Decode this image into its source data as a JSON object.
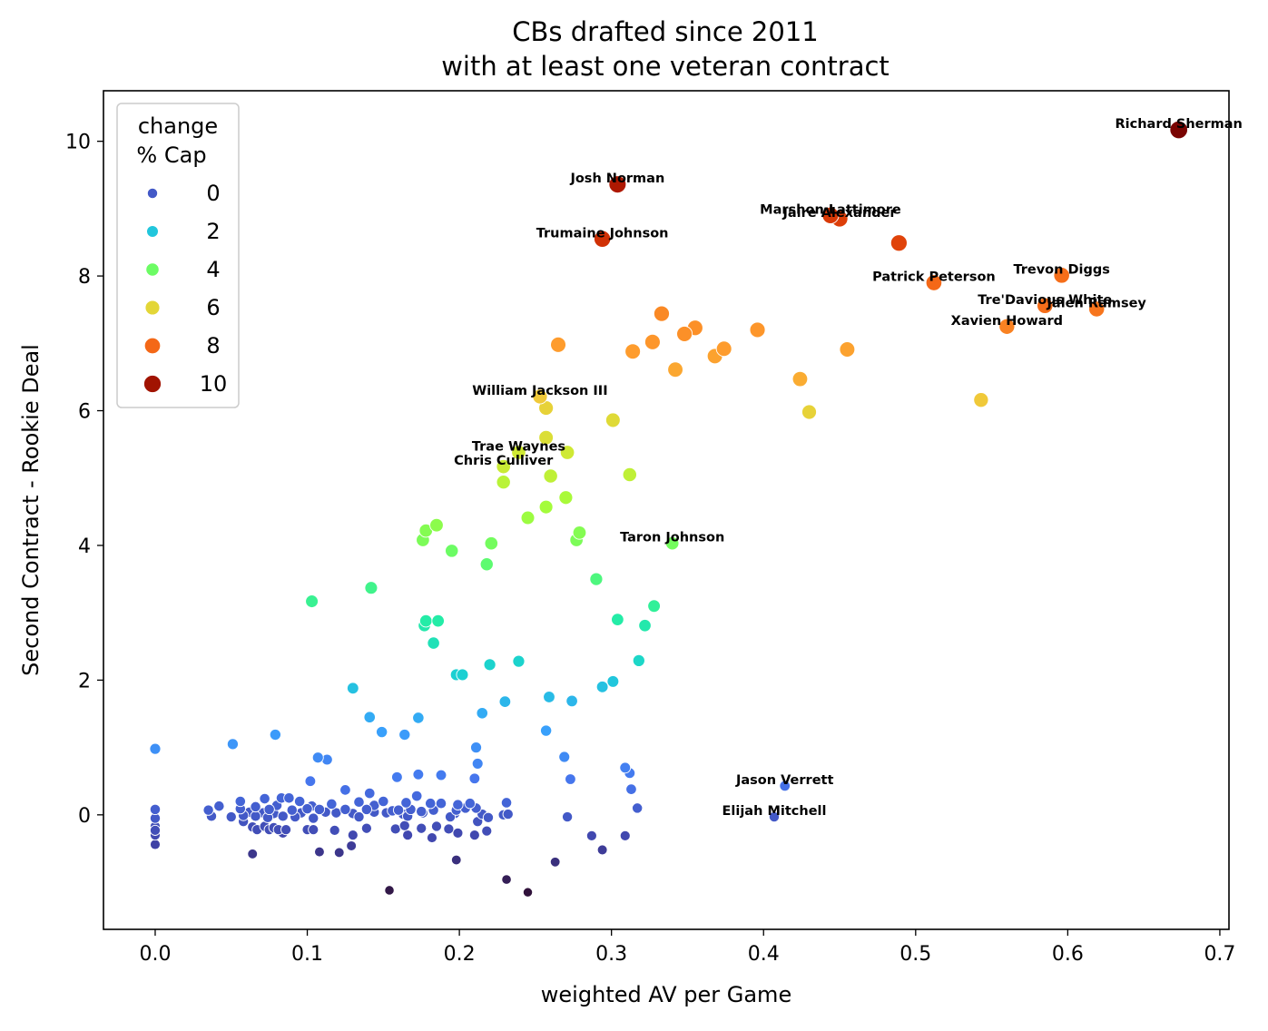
{
  "chart_data": {
    "type": "scatter",
    "title": [
      "CBs drafted since 2011",
      "with at least one veteran contract"
    ],
    "xlabel": "weighted AV per Game",
    "ylabel": "Second Contract - Rookie Deal",
    "xlim": [
      -0.034,
      0.706
    ],
    "ylim": [
      -1.7,
      10.75
    ],
    "xticks": [
      0.0,
      0.1,
      0.2,
      0.3,
      0.4,
      0.5,
      0.6,
      0.7
    ],
    "xtick_labels": [
      "0.0",
      "0.1",
      "0.2",
      "0.3",
      "0.4",
      "0.5",
      "0.6",
      "0.7"
    ],
    "yticks": [
      0,
      2,
      4,
      6,
      8,
      10
    ],
    "ytick_labels": [
      "0",
      "2",
      "4",
      "6",
      "8",
      "10"
    ],
    "grid": false,
    "hue_size_variable": "change % Cap",
    "legend": {
      "title": [
        "change",
        "% Cap"
      ],
      "placement": "top-left",
      "entries": [
        {
          "label": "0",
          "value": 0
        },
        {
          "label": "2",
          "value": 2
        },
        {
          "label": "4",
          "value": 4
        },
        {
          "label": "6",
          "value": 6
        },
        {
          "label": "8",
          "value": 8
        },
        {
          "label": "10",
          "value": 10
        }
      ]
    },
    "colormap": [
      "#30123b",
      "#4145ab",
      "#4675ed",
      "#39a2fc",
      "#1bcfd4",
      "#24eca6",
      "#61fc6c",
      "#a4fc3b",
      "#d1e834",
      "#f3c63a",
      "#fe9b2d",
      "#f36315",
      "#d93806",
      "#b11901",
      "#7a0402"
    ],
    "annotations": [
      {
        "label": "Richard Sherman",
        "x": 0.673,
        "y": 10.17
      },
      {
        "label": "Josh Norman",
        "x": 0.304,
        "y": 9.36
      },
      {
        "label": "Marshon Lattimore",
        "x": 0.444,
        "y": 8.9
      },
      {
        "label": "Jaire Alexander",
        "x": 0.45,
        "y": 8.85
      },
      {
        "label": "Trumaine Johnson",
        "x": 0.294,
        "y": 8.55
      },
      {
        "label": "Trevon Diggs",
        "x": 0.596,
        "y": 8.01
      },
      {
        "label": "Patrick Peterson",
        "x": 0.512,
        "y": 7.9
      },
      {
        "label": "Tre'Davious White",
        "x": 0.585,
        "y": 7.56
      },
      {
        "label": "Jalen Ramsey",
        "x": 0.619,
        "y": 7.51
      },
      {
        "label": "Xavien Howard",
        "x": 0.56,
        "y": 7.25
      },
      {
        "label": "William Jackson III",
        "x": 0.253,
        "y": 6.21
      },
      {
        "label": "Trae Waynes",
        "x": 0.239,
        "y": 5.38
      },
      {
        "label": "Chris Culliver",
        "x": 0.229,
        "y": 5.17
      },
      {
        "label": "Taron Johnson",
        "x": 0.34,
        "y": 4.03
      },
      {
        "label": "Jason Verrett",
        "x": 0.414,
        "y": 0.43
      },
      {
        "label": "Elijah Mitchell",
        "x": 0.407,
        "y": -0.03
      }
    ],
    "points": [
      [
        0.673,
        10.17,
        10.6
      ],
      [
        0.304,
        9.36,
        9.8
      ],
      [
        0.294,
        8.55,
        9.1
      ],
      [
        0.444,
        8.9,
        8.9
      ],
      [
        0.45,
        8.85,
        8.8
      ],
      [
        0.489,
        8.49,
        8.7
      ],
      [
        0.596,
        8.01,
        7.9
      ],
      [
        0.512,
        7.9,
        8.0
      ],
      [
        0.585,
        7.56,
        7.9
      ],
      [
        0.619,
        7.51,
        7.8
      ],
      [
        0.56,
        7.25,
        7.6
      ],
      [
        0.333,
        7.44,
        7.5
      ],
      [
        0.355,
        7.23,
        7.4
      ],
      [
        0.348,
        7.14,
        7.4
      ],
      [
        0.396,
        7.2,
        7.3
      ],
      [
        0.327,
        7.02,
        7.3
      ],
      [
        0.265,
        6.98,
        7.2
      ],
      [
        0.314,
        6.88,
        7.2
      ],
      [
        0.374,
        6.92,
        7.2
      ],
      [
        0.455,
        6.91,
        7.1
      ],
      [
        0.368,
        6.81,
        7.1
      ],
      [
        0.342,
        6.61,
        7.0
      ],
      [
        0.424,
        6.47,
        6.9
      ],
      [
        0.543,
        6.16,
        6.3
      ],
      [
        0.43,
        5.98,
        6.1
      ],
      [
        0.253,
        6.21,
        6.3
      ],
      [
        0.257,
        6.04,
        6.1
      ],
      [
        0.301,
        5.86,
        5.9
      ],
      [
        0.257,
        5.6,
        5.8
      ],
      [
        0.239,
        5.38,
        5.5
      ],
      [
        0.271,
        5.38,
        5.5
      ],
      [
        0.229,
        5.17,
        5.4
      ],
      [
        0.26,
        5.03,
        5.2
      ],
      [
        0.312,
        5.05,
        5.2
      ],
      [
        0.229,
        4.94,
        5.1
      ],
      [
        0.27,
        4.71,
        4.8
      ],
      [
        0.257,
        4.57,
        4.7
      ],
      [
        0.245,
        4.41,
        4.6
      ],
      [
        0.185,
        4.3,
        4.4
      ],
      [
        0.178,
        4.22,
        4.3
      ],
      [
        0.279,
        4.19,
        4.3
      ],
      [
        0.176,
        4.08,
        4.2
      ],
      [
        0.277,
        4.08,
        4.2
      ],
      [
        0.221,
        4.03,
        4.1
      ],
      [
        0.34,
        4.03,
        4.1
      ],
      [
        0.195,
        3.92,
        4.0
      ],
      [
        0.218,
        3.72,
        3.8
      ],
      [
        0.29,
        3.5,
        3.6
      ],
      [
        0.142,
        3.37,
        3.4
      ],
      [
        0.103,
        3.17,
        3.3
      ],
      [
        0.328,
        3.1,
        3.2
      ],
      [
        0.178,
        2.88,
        3.0
      ],
      [
        0.186,
        2.88,
        3.0
      ],
      [
        0.304,
        2.9,
        3.0
      ],
      [
        0.177,
        2.81,
        2.9
      ],
      [
        0.322,
        2.81,
        2.9
      ],
      [
        0.183,
        2.55,
        2.7
      ],
      [
        0.318,
        2.29,
        2.4
      ],
      [
        0.239,
        2.28,
        2.3
      ],
      [
        0.22,
        2.23,
        2.3
      ],
      [
        0.198,
        2.08,
        2.2
      ],
      [
        0.202,
        2.08,
        2.2
      ],
      [
        0.301,
        1.98,
        2.0
      ],
      [
        0.294,
        1.9,
        1.9
      ],
      [
        0.13,
        1.88,
        1.9
      ],
      [
        0.259,
        1.75,
        1.8
      ],
      [
        0.274,
        1.69,
        1.7
      ],
      [
        0.23,
        1.68,
        1.7
      ],
      [
        0.215,
        1.51,
        1.5
      ],
      [
        0.173,
        1.44,
        1.5
      ],
      [
        0.141,
        1.45,
        1.5
      ],
      [
        0.257,
        1.25,
        1.3
      ],
      [
        0.149,
        1.23,
        1.3
      ],
      [
        0.164,
        1.19,
        1.2
      ],
      [
        0.079,
        1.19,
        1.2
      ],
      [
        0.051,
        1.05,
        1.1
      ],
      [
        0.0,
        0.98,
        1.0
      ],
      [
        0.211,
        1.0,
        1.0
      ],
      [
        0.107,
        0.85,
        0.9
      ],
      [
        0.269,
        0.86,
        0.9
      ],
      [
        0.113,
        0.82,
        0.8
      ],
      [
        0.212,
        0.76,
        0.8
      ],
      [
        0.309,
        0.7,
        0.7
      ],
      [
        0.312,
        0.62,
        0.6
      ],
      [
        0.173,
        0.6,
        0.6
      ],
      [
        0.188,
        0.59,
        0.6
      ],
      [
        0.159,
        0.56,
        0.6
      ],
      [
        0.21,
        0.54,
        0.5
      ],
      [
        0.273,
        0.53,
        0.5
      ],
      [
        0.102,
        0.5,
        0.5
      ],
      [
        0.414,
        0.43,
        0.4
      ],
      [
        0.313,
        0.38,
        0.4
      ],
      [
        0.125,
        0.37,
        0.4
      ],
      [
        0.141,
        0.32,
        0.3
      ],
      [
        0.172,
        0.28,
        0.3
      ],
      [
        0.056,
        0.2,
        0.2
      ],
      [
        0.072,
        0.24,
        0.2
      ],
      [
        0.083,
        0.25,
        0.2
      ],
      [
        0.088,
        0.25,
        0.2
      ],
      [
        0.095,
        0.2,
        0.2
      ],
      [
        0.134,
        0.19,
        0.2
      ],
      [
        0.15,
        0.2,
        0.2
      ],
      [
        0.165,
        0.18,
        0.2
      ],
      [
        0.181,
        0.17,
        0.2
      ],
      [
        0.188,
        0.17,
        0.2
      ],
      [
        0.199,
        0.15,
        0.2
      ],
      [
        0.207,
        0.17,
        0.2
      ],
      [
        0.231,
        0.18,
        0.2
      ],
      [
        0.116,
        0.16,
        0.2
      ],
      [
        0.144,
        0.14,
        0.1
      ],
      [
        0.042,
        0.13,
        0.1
      ],
      [
        0.066,
        0.12,
        0.1
      ],
      [
        0.08,
        0.14,
        0.1
      ],
      [
        0.103,
        0.13,
        0.1
      ],
      [
        0.211,
        0.1,
        0.1
      ],
      [
        0.317,
        0.1,
        0.1
      ],
      [
        0.035,
        0.07,
        0.1
      ],
      [
        0.056,
        0.09,
        0.1
      ],
      [
        0.075,
        0.08,
        0.1
      ],
      [
        0.09,
        0.07,
        0.1
      ],
      [
        0.1,
        0.09,
        0.1
      ],
      [
        0.108,
        0.08,
        0.1
      ],
      [
        0.125,
        0.08,
        0.1
      ],
      [
        0.139,
        0.08,
        0.1
      ],
      [
        0.156,
        0.06,
        0.1
      ],
      [
        0.16,
        0.07,
        0.1
      ],
      [
        0.168,
        0.08,
        0.1
      ],
      [
        0.175,
        0.05,
        0.1
      ],
      [
        0.183,
        0.07,
        0.1
      ],
      [
        0.198,
        0.07,
        0.1
      ],
      [
        0.204,
        0.1,
        0.1
      ],
      [
        0.0,
        0.08,
        0.1
      ],
      [
        0.062,
        0.04,
        0.0
      ],
      [
        0.071,
        0.03,
        0.0
      ],
      [
        0.078,
        0.02,
        0.0
      ],
      [
        0.096,
        0.03,
        0.0
      ],
      [
        0.112,
        0.04,
        0.0
      ],
      [
        0.119,
        0.03,
        0.0
      ],
      [
        0.13,
        0.02,
        0.0
      ],
      [
        0.144,
        0.04,
        0.0
      ],
      [
        0.152,
        0.03,
        0.0
      ],
      [
        0.163,
        0.01,
        0.0
      ],
      [
        0.176,
        0.03,
        0.0
      ],
      [
        0.197,
        0.02,
        0.0
      ],
      [
        0.215,
        0.01,
        0.0
      ],
      [
        0.229,
        0.0,
        0.0
      ],
      [
        0.232,
        0.01,
        0.0
      ],
      [
        0.037,
        -0.02,
        0.0
      ],
      [
        0.05,
        -0.03,
        0.0
      ],
      [
        0.058,
        -0.01,
        0.0
      ],
      [
        0.066,
        -0.02,
        0.0
      ],
      [
        0.074,
        -0.04,
        0.0
      ],
      [
        0.084,
        -0.02,
        0.0
      ],
      [
        0.092,
        -0.03,
        0.0
      ],
      [
        0.104,
        -0.05,
        0.0
      ],
      [
        0.134,
        -0.03,
        0.0
      ],
      [
        0.166,
        -0.02,
        0.0
      ],
      [
        0.194,
        -0.03,
        0.0
      ],
      [
        0.219,
        -0.04,
        0.0
      ],
      [
        0.271,
        -0.03,
        0.0
      ],
      [
        0.407,
        -0.03,
        0.0
      ],
      [
        0.0,
        -0.05,
        0.0
      ],
      [
        0.0,
        -0.17,
        -0.2
      ],
      [
        0.0,
        -0.23,
        -0.2
      ],
      [
        0.0,
        -0.3,
        -0.3
      ],
      [
        0.0,
        -0.44,
        -0.4
      ],
      [
        0.058,
        -0.1,
        -0.1
      ],
      [
        0.064,
        -0.18,
        -0.2
      ],
      [
        0.067,
        -0.22,
        -0.2
      ],
      [
        0.072,
        -0.17,
        -0.2
      ],
      [
        0.075,
        -0.22,
        -0.2
      ],
      [
        0.078,
        -0.19,
        -0.2
      ],
      [
        0.081,
        -0.22,
        -0.2
      ],
      [
        0.084,
        -0.27,
        -0.3
      ],
      [
        0.086,
        -0.22,
        -0.2
      ],
      [
        0.1,
        -0.22,
        -0.2
      ],
      [
        0.104,
        -0.22,
        -0.2
      ],
      [
        0.118,
        -0.23,
        -0.2
      ],
      [
        0.139,
        -0.2,
        -0.2
      ],
      [
        0.158,
        -0.21,
        -0.2
      ],
      [
        0.164,
        -0.16,
        -0.2
      ],
      [
        0.166,
        -0.3,
        -0.3
      ],
      [
        0.175,
        -0.2,
        -0.2
      ],
      [
        0.182,
        -0.34,
        -0.3
      ],
      [
        0.185,
        -0.17,
        -0.2
      ],
      [
        0.193,
        -0.21,
        -0.2
      ],
      [
        0.199,
        -0.27,
        -0.3
      ],
      [
        0.21,
        -0.3,
        -0.3
      ],
      [
        0.212,
        -0.1,
        -0.1
      ],
      [
        0.218,
        -0.24,
        -0.2
      ],
      [
        0.13,
        -0.3,
        -0.3
      ],
      [
        0.287,
        -0.31,
        -0.3
      ],
      [
        0.309,
        -0.31,
        -0.3
      ],
      [
        0.129,
        -0.46,
        -0.5
      ],
      [
        0.294,
        -0.52,
        -0.5
      ],
      [
        0.108,
        -0.55,
        -0.6
      ],
      [
        0.121,
        -0.56,
        -0.6
      ],
      [
        0.064,
        -0.58,
        -0.6
      ],
      [
        0.198,
        -0.67,
        -0.7
      ],
      [
        0.263,
        -0.7,
        -0.7
      ],
      [
        0.231,
        -0.96,
        -1.0
      ],
      [
        0.154,
        -1.12,
        -1.1
      ],
      [
        0.245,
        -1.15,
        -1.2
      ]
    ]
  }
}
